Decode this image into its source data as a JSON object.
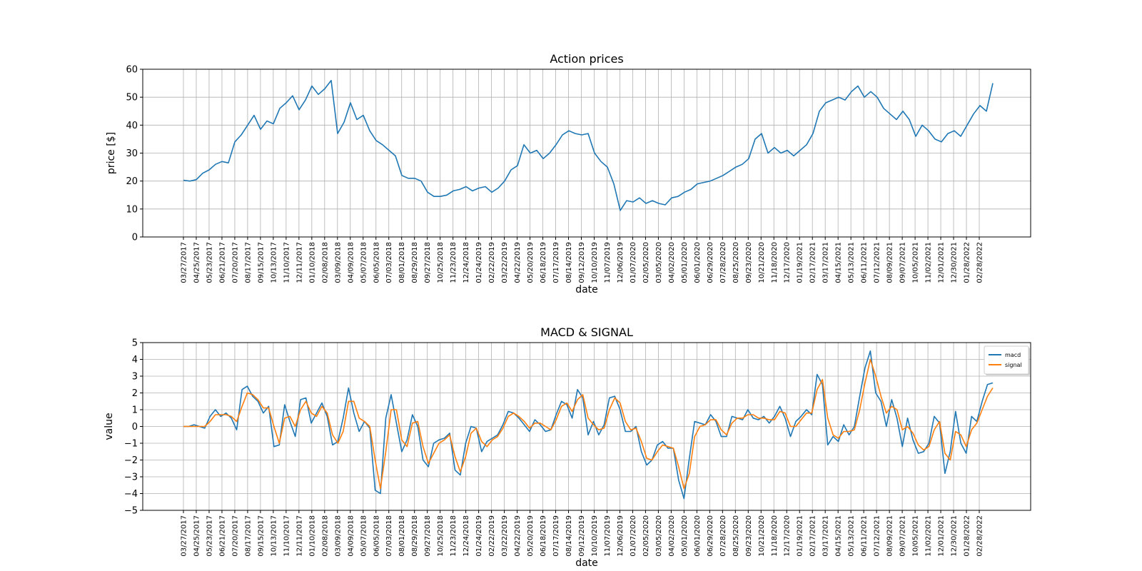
{
  "chart_data": [
    {
      "type": "line",
      "title": "Action prices",
      "xlabel": "date",
      "ylabel": "price [$]",
      "ylim": [
        0,
        60
      ],
      "yticks": [
        0,
        10,
        20,
        30,
        40,
        50,
        60
      ],
      "grid": true,
      "color": "#1f77b4",
      "x_ticks": [
        "03/27/2017",
        "04/25/2017",
        "05/23/2017",
        "06/21/2017",
        "07/20/2017",
        "08/17/2017",
        "09/15/2017",
        "10/13/2017",
        "11/10/2017",
        "12/11/2017",
        "01/10/2018",
        "02/08/2018",
        "03/09/2018",
        "04/09/2018",
        "05/07/2018",
        "06/05/2018",
        "07/03/2018",
        "08/01/2018",
        "08/29/2018",
        "09/27/2018",
        "10/25/2018",
        "11/23/2018",
        "12/24/2018",
        "01/24/2019",
        "02/22/2019",
        "03/22/2019",
        "04/22/2019",
        "05/20/2019",
        "06/18/2019",
        "07/17/2019",
        "08/14/2019",
        "09/12/2019",
        "10/10/2019",
        "11/07/2019",
        "12/06/2019",
        "01/07/2020",
        "02/05/2020",
        "03/05/2020",
        "04/02/2020",
        "05/01/2020",
        "06/01/2020",
        "06/29/2020",
        "07/28/2020",
        "08/25/2020",
        "09/23/2020",
        "10/21/2020",
        "11/18/2020",
        "12/17/2020",
        "01/19/2021",
        "02/17/2021",
        "03/17/2021",
        "04/15/2021",
        "05/13/2021",
        "06/11/2021",
        "07/12/2021",
        "08/09/2021",
        "09/07/2021",
        "10/05/2021",
        "11/02/2021",
        "12/01/2021",
        "12/30/2021",
        "01/28/2022",
        "02/28/2022"
      ],
      "series": [
        {
          "name": "",
          "values": [
            20.3,
            20.0,
            20.5,
            22.8,
            24.0,
            26.0,
            27.0,
            26.5,
            34.0,
            36.5,
            40.0,
            43.5,
            38.5,
            41.5,
            40.5,
            46.0,
            48.0,
            50.5,
            45.5,
            49.0,
            54.0,
            51.0,
            53.0,
            56.0,
            37.0,
            41.0,
            48.0,
            42.0,
            43.5,
            38.0,
            34.5,
            33.0,
            31.0,
            29.0,
            22.0,
            21.0,
            21.0,
            20.0,
            16.0,
            14.5,
            14.5,
            15.0,
            16.5,
            17.0,
            18.0,
            16.5,
            17.5,
            18.0,
            16.0,
            17.5,
            20.0,
            24.0,
            25.5,
            33.0,
            30.0,
            31.0,
            28.0,
            30.0,
            33.0,
            36.5,
            38.0,
            37.0,
            36.5,
            37.0,
            30.0,
            27.0,
            25.0,
            19.0,
            9.5,
            13.0,
            12.5,
            14.0,
            12.0,
            13.0,
            12.0,
            11.5,
            14.0,
            14.5,
            16.0,
            17.0,
            19.0,
            19.5,
            20.0,
            21.0,
            22.0,
            23.5,
            25.0,
            26.0,
            28.0,
            35.0,
            37.0,
            30.0,
            32.0,
            30.0,
            31.0,
            29.0,
            31.0,
            33.0,
            37.0,
            45.0,
            48.0,
            49.0,
            50.0,
            49.0,
            52.0,
            54.0,
            50.0,
            52.0,
            50.0,
            46.0,
            44.0,
            42.0,
            45.0,
            42.0,
            36.0,
            40.0,
            38.0,
            35.0,
            34.0,
            37.0,
            38.0,
            36.0,
            40.0,
            44.0,
            47.0,
            45.0,
            55.0
          ]
        }
      ]
    },
    {
      "type": "line",
      "title": "MACD & SIGNAL",
      "xlabel": "date",
      "ylabel": "value",
      "ylim": [
        -5,
        5
      ],
      "yticks": [
        -5,
        -4,
        -3,
        -2,
        -1,
        0,
        1,
        2,
        3,
        4,
        5
      ],
      "grid": true,
      "legend": "top-right",
      "x_ticks": [
        "03/27/2017",
        "04/25/2017",
        "05/23/2017",
        "06/21/2017",
        "07/20/2017",
        "08/17/2017",
        "09/15/2017",
        "10/13/2017",
        "11/10/2017",
        "12/11/2017",
        "01/10/2018",
        "02/08/2018",
        "03/09/2018",
        "04/09/2018",
        "05/07/2018",
        "06/05/2018",
        "07/03/2018",
        "08/01/2018",
        "08/29/2018",
        "09/27/2018",
        "10/25/2018",
        "11/23/2018",
        "12/24/2018",
        "01/24/2019",
        "02/22/2019",
        "03/22/2019",
        "04/22/2019",
        "05/20/2019",
        "06/18/2019",
        "07/17/2019",
        "08/14/2019",
        "09/12/2019",
        "10/10/2019",
        "11/07/2019",
        "12/06/2019",
        "01/07/2020",
        "02/05/2020",
        "03/05/2020",
        "04/02/2020",
        "05/01/2020",
        "06/01/2020",
        "06/29/2020",
        "07/28/2020",
        "08/25/2020",
        "09/23/2020",
        "10/21/2020",
        "11/18/2020",
        "12/17/2020",
        "01/19/2021",
        "02/17/2021",
        "03/17/2021",
        "04/15/2021",
        "05/13/2021",
        "06/11/2021",
        "07/12/2021",
        "08/09/2021",
        "09/07/2021",
        "10/05/2021",
        "11/02/2021",
        "12/01/2021",
        "12/30/2021",
        "01/28/2022",
        "02/28/2022"
      ],
      "series": [
        {
          "name": "macd",
          "color": "#1f77b4",
          "values": [
            0.0,
            0.0,
            0.1,
            0.0,
            -0.1,
            0.6,
            1.0,
            0.6,
            0.8,
            0.5,
            -0.2,
            2.2,
            2.4,
            1.8,
            1.5,
            0.8,
            1.2,
            -1.2,
            -1.1,
            1.3,
            0.3,
            -0.6,
            1.6,
            1.7,
            0.2,
            0.8,
            1.4,
            0.6,
            -1.1,
            -0.9,
            0.5,
            2.3,
            0.8,
            -0.3,
            0.3,
            -0.1,
            -3.8,
            -4.0,
            0.5,
            1.9,
            0.2,
            -1.5,
            -0.8,
            0.7,
            0.0,
            -2.0,
            -2.4,
            -1.0,
            -0.8,
            -0.7,
            -0.4,
            -2.6,
            -2.9,
            -1.0,
            0.0,
            -0.1,
            -1.5,
            -0.9,
            -0.7,
            -0.5,
            0.1,
            0.9,
            0.8,
            0.5,
            0.1,
            -0.3,
            0.4,
            0.1,
            -0.3,
            -0.2,
            0.7,
            1.5,
            1.3,
            0.5,
            2.2,
            1.7,
            -0.5,
            0.3,
            -0.5,
            0.1,
            1.7,
            1.8,
            1.0,
            -0.3,
            -0.3,
            0.0,
            -1.5,
            -2.3,
            -2.0,
            -1.1,
            -0.9,
            -1.3,
            -1.3,
            -3.2,
            -4.3,
            -1.9,
            0.3,
            0.2,
            0.1,
            0.7,
            0.3,
            -0.6,
            -0.6,
            0.6,
            0.5,
            0.4,
            1.0,
            0.5,
            0.4,
            0.6,
            0.2,
            0.6,
            1.2,
            0.5,
            -0.6,
            0.3,
            0.6,
            1.0,
            0.7,
            3.1,
            2.5,
            -1.1,
            -0.6,
            -0.9,
            0.1,
            -0.5,
            0.0,
            1.8,
            3.5,
            4.5,
            2.0,
            1.5,
            0.0,
            1.6,
            0.5,
            -1.2,
            0.5,
            -0.8,
            -1.6,
            -1.5,
            -1.0,
            0.6,
            0.2,
            -2.8,
            -1.5,
            0.9,
            -1.0,
            -1.6,
            0.6,
            0.3,
            1.5,
            2.5,
            2.6
          ]
        },
        {
          "name": "signal",
          "color": "#ff7f0e",
          "values": [
            0.0,
            0.0,
            0.0,
            0.0,
            0.0,
            0.3,
            0.7,
            0.7,
            0.7,
            0.6,
            0.3,
            1.2,
            2.0,
            1.9,
            1.6,
            1.1,
            1.1,
            0.0,
            -1.0,
            0.5,
            0.6,
            0.0,
            1.0,
            1.5,
            0.8,
            0.6,
            1.2,
            0.8,
            -0.5,
            -1.0,
            -0.3,
            1.5,
            1.5,
            0.5,
            0.3,
            0.0,
            -2.0,
            -3.7,
            -1.5,
            1.0,
            1.0,
            -0.8,
            -1.2,
            0.2,
            0.3,
            -1.2,
            -2.2,
            -1.6,
            -1.0,
            -0.8,
            -0.5,
            -1.8,
            -2.7,
            -1.8,
            -0.4,
            -0.1,
            -0.9,
            -1.2,
            -0.8,
            -0.6,
            -0.1,
            0.6,
            0.8,
            0.6,
            0.3,
            -0.1,
            0.2,
            0.2,
            0.0,
            -0.2,
            0.4,
            1.2,
            1.4,
            0.9,
            1.6,
            1.9,
            0.5,
            0.1,
            -0.2,
            -0.1,
            1.0,
            1.7,
            1.4,
            0.3,
            -0.2,
            -0.1,
            -0.9,
            -1.9,
            -2.0,
            -1.5,
            -1.1,
            -1.2,
            -1.3,
            -2.4,
            -3.7,
            -2.8,
            -0.6,
            0.0,
            0.1,
            0.4,
            0.4,
            -0.2,
            -0.5,
            0.2,
            0.5,
            0.5,
            0.7,
            0.7,
            0.5,
            0.5,
            0.4,
            0.4,
            0.9,
            0.8,
            0.0,
            0.0,
            0.4,
            0.8,
            0.8,
            2.2,
            2.8,
            0.5,
            -0.5,
            -0.7,
            -0.3,
            -0.3,
            -0.2,
            1.0,
            2.6,
            4.0,
            3.0,
            1.8,
            0.8,
            1.2,
            1.0,
            -0.2,
            0.0,
            -0.4,
            -1.1,
            -1.4,
            -1.2,
            -0.2,
            0.3,
            -1.6,
            -2.0,
            -0.3,
            -0.5,
            -1.2,
            -0.2,
            0.2,
            1.0,
            1.8,
            2.3
          ]
        }
      ]
    }
  ]
}
